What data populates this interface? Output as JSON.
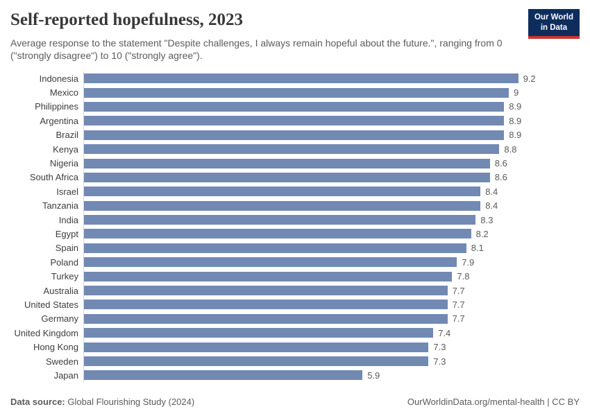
{
  "header": {
    "title": "Self-reported hopefulness, 2023",
    "subtitle": "Average response to the statement \"Despite challenges, I always remain hopeful about the future.\", ranging from 0 (\"strongly disagree\") to 10 (\"strongly agree\").",
    "logo": {
      "line1": "Our World",
      "line2": "in Data"
    }
  },
  "chart_data": {
    "type": "bar",
    "orientation": "horizontal",
    "title": "Self-reported hopefulness, 2023",
    "categories": [
      "Indonesia",
      "Mexico",
      "Philippines",
      "Argentina",
      "Brazil",
      "Kenya",
      "Nigeria",
      "South Africa",
      "Israel",
      "Tanzania",
      "India",
      "Egypt",
      "Spain",
      "Poland",
      "Turkey",
      "Australia",
      "United States",
      "Germany",
      "United Kingdom",
      "Hong Kong",
      "Sweden",
      "Japan"
    ],
    "values": [
      9.2,
      9,
      8.9,
      8.9,
      8.9,
      8.8,
      8.6,
      8.6,
      8.4,
      8.4,
      8.3,
      8.2,
      8.1,
      7.9,
      7.8,
      7.7,
      7.7,
      7.7,
      7.4,
      7.3,
      7.3,
      5.9
    ],
    "xlim": [
      0,
      10
    ],
    "grid": false,
    "legend": "none",
    "bar_color": "#7289b3",
    "value_labels": true
  },
  "footer": {
    "source_label": "Data source:",
    "source_value": "Global Flourishing Study (2024)",
    "attribution": "OurWorldinData.org/mental-health | CC BY"
  }
}
